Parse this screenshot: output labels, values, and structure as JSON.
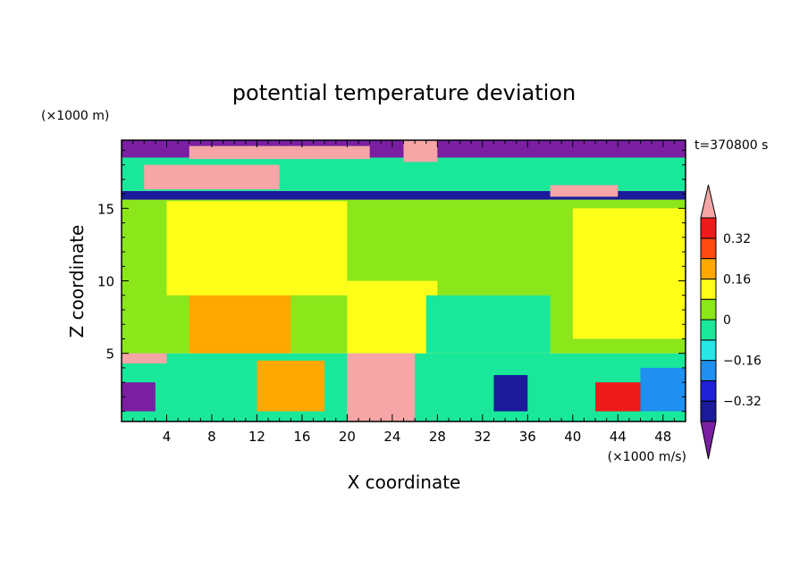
{
  "chart_data": {
    "type": "heatmap",
    "title": "potential temperature deviation",
    "xlabel": "X coordinate",
    "ylabel": "Z coordinate",
    "x_unit": "(×1000 m/s)",
    "y_unit": "(×1000 m)",
    "time_label": "t=370800 s",
    "xlim": [
      0,
      50
    ],
    "ylim": [
      0.3,
      19.7
    ],
    "x_ticks": [
      4,
      8,
      12,
      16,
      20,
      24,
      28,
      32,
      36,
      40,
      44,
      48
    ],
    "x_tick_labels": [
      "4",
      "8",
      "12",
      "16",
      "20",
      "24",
      "28",
      "32",
      "36",
      "40",
      "44",
      "48"
    ],
    "y_ticks": [
      5,
      10,
      15
    ],
    "y_tick_labels": [
      "5",
      "10",
      "15"
    ],
    "colorbar": {
      "levels": [
        -0.4,
        -0.32,
        -0.24,
        -0.16,
        -0.08,
        0,
        0.08,
        0.16,
        0.24,
        0.32,
        0.4
      ],
      "labels": [
        {
          "value": 0.32,
          "text": "0.32"
        },
        {
          "value": 0.16,
          "text": "0.16"
        },
        {
          "value": 0,
          "text": "0"
        },
        {
          "value": -0.16,
          "text": "−0.16"
        },
        {
          "value": -0.32,
          "text": "−0.32"
        }
      ],
      "colors": [
        "#7a1fa2",
        "#1a1a9a",
        "#2020d8",
        "#1f8ff0",
        "#26e6e6",
        "#19e89a",
        "#8be61a",
        "#ffff1a",
        "#ffa800",
        "#ff4a10",
        "#ee1a1a",
        "#f6a6a6"
      ]
    },
    "regions": [
      {
        "x": [
          0,
          50
        ],
        "z": [
          0.3,
          5
        ],
        "value": -0.06
      },
      {
        "x": [
          0,
          50
        ],
        "z": [
          5,
          15.6
        ],
        "value": 0.03
      },
      {
        "x": [
          6,
          15
        ],
        "z": [
          5,
          9.5
        ],
        "value": 0.2
      },
      {
        "x": [
          20,
          28
        ],
        "z": [
          5,
          10
        ],
        "value": 0.1
      },
      {
        "x": [
          27,
          38
        ],
        "z": [
          5,
          9
        ],
        "value": -0.05
      },
      {
        "x": [
          40,
          50
        ],
        "z": [
          6,
          15
        ],
        "value": 0.08
      },
      {
        "x": [
          4,
          20
        ],
        "z": [
          9,
          15.5
        ],
        "value": 0.09
      },
      {
        "x": [
          0,
          50
        ],
        "z": [
          15.6,
          16.2
        ],
        "value": -0.35
      },
      {
        "x": [
          0,
          50
        ],
        "z": [
          16.2,
          18.5
        ],
        "value": -0.02
      },
      {
        "x": [
          0,
          50
        ],
        "z": [
          18.5,
          19.7
        ],
        "value": -0.42
      },
      {
        "x": [
          20,
          26
        ],
        "z": [
          0.3,
          5
        ],
        "value": 0.45
      },
      {
        "x": [
          12,
          18
        ],
        "z": [
          1,
          4.5
        ],
        "value": 0.22
      },
      {
        "x": [
          0,
          4
        ],
        "z": [
          4.3,
          5
        ],
        "value": 0.45
      },
      {
        "x": [
          0,
          3
        ],
        "z": [
          1,
          3
        ],
        "value": -0.42
      },
      {
        "x": [
          33,
          36
        ],
        "z": [
          1,
          3.5
        ],
        "value": -0.35
      },
      {
        "x": [
          42,
          46
        ],
        "z": [
          1,
          3
        ],
        "value": 0.36
      },
      {
        "x": [
          46,
          50
        ],
        "z": [
          1,
          4
        ],
        "value": -0.2
      },
      {
        "x": [
          2,
          14
        ],
        "z": [
          16.3,
          18
        ],
        "value": 0.45
      },
      {
        "x": [
          25,
          28
        ],
        "z": [
          18.2,
          19.7
        ],
        "value": 0.45
      },
      {
        "x": [
          38,
          44
        ],
        "z": [
          15.8,
          16.6
        ],
        "value": 0.45
      },
      {
        "x": [
          6,
          22
        ],
        "z": [
          18.4,
          19.3
        ],
        "value": 0.45
      }
    ]
  }
}
